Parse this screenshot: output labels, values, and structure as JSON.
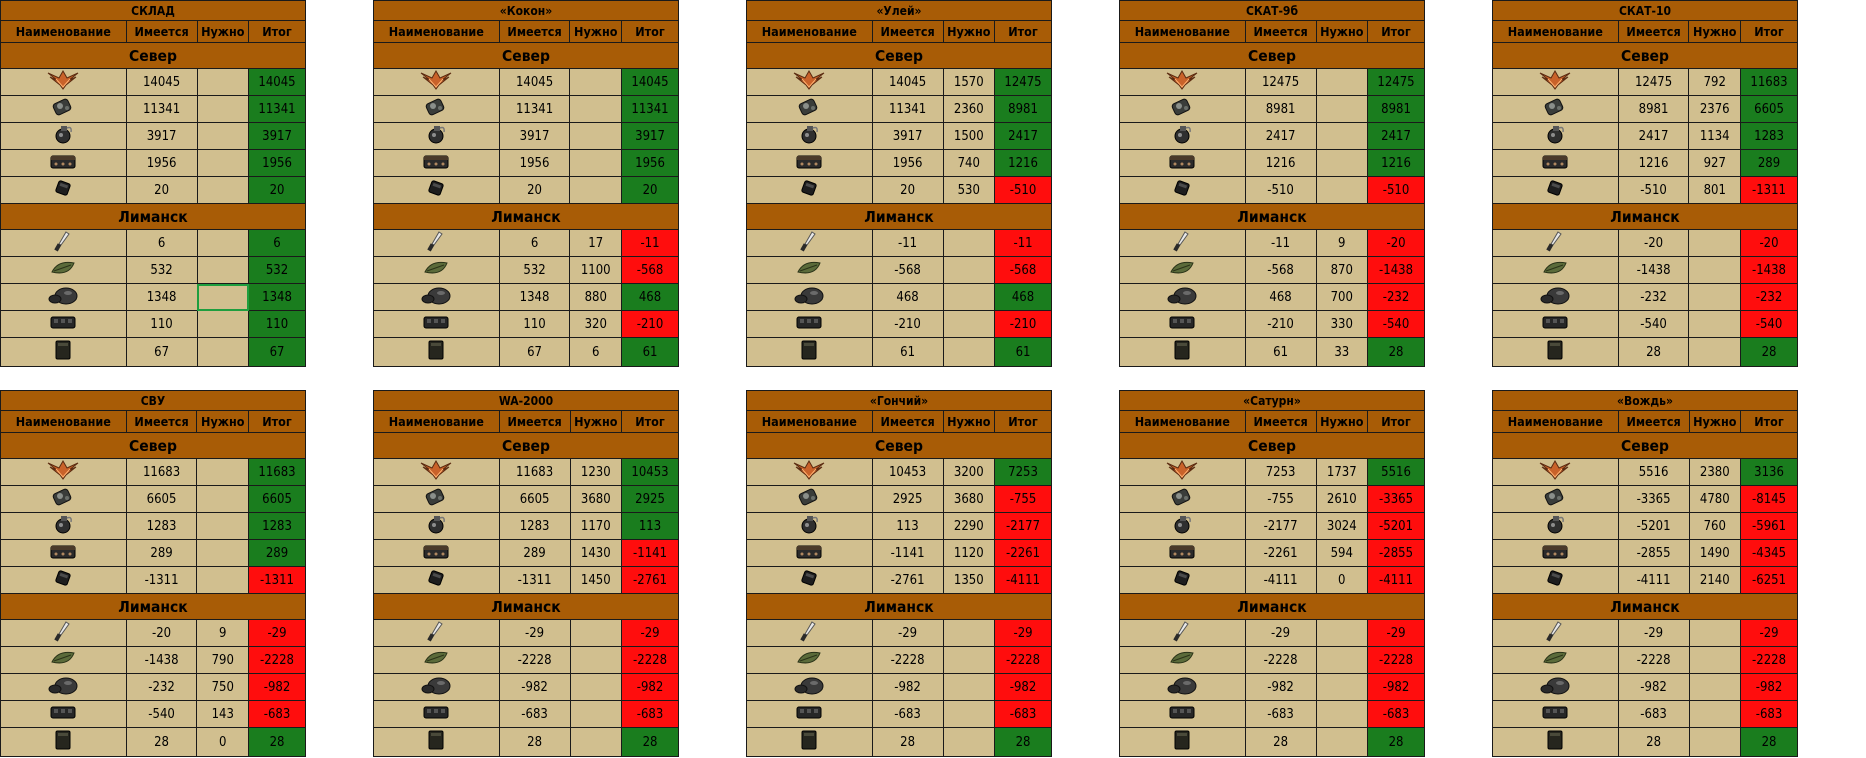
{
  "headers": {
    "name": "Наименование",
    "have": "Имеется",
    "need": "Нужно",
    "total": "Итог"
  },
  "sections": {
    "north": "Север",
    "limansk": "Лиманск"
  },
  "icons": {
    "north": [
      "claw-artifact-icon",
      "battery-pack-icon",
      "grenade-icon",
      "ammo-box-icon",
      "small-pouch-icon"
    ],
    "limansk": [
      "knife-icon",
      "leaf-icon",
      "rock-artifact-icon",
      "crate-icon",
      "canister-icon"
    ]
  },
  "colors": {
    "header": "#a85c06",
    "cell": "#d1bf8f",
    "positive": "#1a7d1e",
    "negative": "#ff0d0d"
  },
  "blocks": [
    {
      "title": "СКЛАД",
      "north": [
        [
          "14045",
          "",
          "14045"
        ],
        [
          "11341",
          "",
          "11341"
        ],
        [
          "3917",
          "",
          "3917"
        ],
        [
          "1956",
          "",
          "1956"
        ],
        [
          "20",
          "",
          "20"
        ]
      ],
      "limansk": [
        [
          "6",
          "",
          "6"
        ],
        [
          "532",
          "",
          "532"
        ],
        [
          "1348",
          "",
          "1348"
        ],
        [
          "110",
          "",
          "110"
        ],
        [
          "67",
          "",
          "67"
        ]
      ]
    },
    {
      "title": "«Кокон»",
      "north": [
        [
          "14045",
          "",
          "14045"
        ],
        [
          "11341",
          "",
          "11341"
        ],
        [
          "3917",
          "",
          "3917"
        ],
        [
          "1956",
          "",
          "1956"
        ],
        [
          "20",
          "",
          "20"
        ]
      ],
      "limansk": [
        [
          "6",
          "17",
          "-11"
        ],
        [
          "532",
          "1100",
          "-568"
        ],
        [
          "1348",
          "880",
          "468"
        ],
        [
          "110",
          "320",
          "-210"
        ],
        [
          "67",
          "6",
          "61"
        ]
      ]
    },
    {
      "title": "«Улей»",
      "north": [
        [
          "14045",
          "1570",
          "12475"
        ],
        [
          "11341",
          "2360",
          "8981"
        ],
        [
          "3917",
          "1500",
          "2417"
        ],
        [
          "1956",
          "740",
          "1216"
        ],
        [
          "20",
          "530",
          "-510"
        ]
      ],
      "limansk": [
        [
          "-11",
          "",
          "-11"
        ],
        [
          "-568",
          "",
          "-568"
        ],
        [
          "468",
          "",
          "468"
        ],
        [
          "-210",
          "",
          "-210"
        ],
        [
          "61",
          "",
          "61"
        ]
      ]
    },
    {
      "title": "СКАТ-9б",
      "north": [
        [
          "12475",
          "",
          "12475"
        ],
        [
          "8981",
          "",
          "8981"
        ],
        [
          "2417",
          "",
          "2417"
        ],
        [
          "1216",
          "",
          "1216"
        ],
        [
          "-510",
          "",
          "-510"
        ]
      ],
      "limansk": [
        [
          "-11",
          "9",
          "-20"
        ],
        [
          "-568",
          "870",
          "-1438"
        ],
        [
          "468",
          "700",
          "-232"
        ],
        [
          "-210",
          "330",
          "-540"
        ],
        [
          "61",
          "33",
          "28"
        ]
      ]
    },
    {
      "title": "СКАТ-10",
      "north": [
        [
          "12475",
          "792",
          "11683"
        ],
        [
          "8981",
          "2376",
          "6605"
        ],
        [
          "2417",
          "1134",
          "1283"
        ],
        [
          "1216",
          "927",
          "289"
        ],
        [
          "-510",
          "801",
          "-1311"
        ]
      ],
      "limansk": [
        [
          "-20",
          "",
          "-20"
        ],
        [
          "-1438",
          "",
          "-1438"
        ],
        [
          "-232",
          "",
          "-232"
        ],
        [
          "-540",
          "",
          "-540"
        ],
        [
          "28",
          "",
          "28"
        ]
      ]
    },
    {
      "title": "СВУ",
      "north": [
        [
          "11683",
          "",
          "11683"
        ],
        [
          "6605",
          "",
          "6605"
        ],
        [
          "1283",
          "",
          "1283"
        ],
        [
          "289",
          "",
          "289"
        ],
        [
          "-1311",
          "",
          "-1311"
        ]
      ],
      "limansk": [
        [
          "-20",
          "9",
          "-29"
        ],
        [
          "-1438",
          "790",
          "-2228"
        ],
        [
          "-232",
          "750",
          "-982"
        ],
        [
          "-540",
          "143",
          "-683"
        ],
        [
          "28",
          "0",
          "28"
        ]
      ]
    },
    {
      "title": "WA-2000",
      "north": [
        [
          "11683",
          "1230",
          "10453"
        ],
        [
          "6605",
          "3680",
          "2925"
        ],
        [
          "1283",
          "1170",
          "113"
        ],
        [
          "289",
          "1430",
          "-1141"
        ],
        [
          "-1311",
          "1450",
          "-2761"
        ]
      ],
      "limansk": [
        [
          "-29",
          "",
          "-29"
        ],
        [
          "-2228",
          "",
          "-2228"
        ],
        [
          "-982",
          "",
          "-982"
        ],
        [
          "-683",
          "",
          "-683"
        ],
        [
          "28",
          "",
          "28"
        ]
      ]
    },
    {
      "title": "«Гончий»",
      "north": [
        [
          "10453",
          "3200",
          "7253"
        ],
        [
          "2925",
          "3680",
          "-755"
        ],
        [
          "113",
          "2290",
          "-2177"
        ],
        [
          "-1141",
          "1120",
          "-2261"
        ],
        [
          "-2761",
          "1350",
          "-4111"
        ]
      ],
      "limansk": [
        [
          "-29",
          "",
          "-29"
        ],
        [
          "-2228",
          "",
          "-2228"
        ],
        [
          "-982",
          "",
          "-982"
        ],
        [
          "-683",
          "",
          "-683"
        ],
        [
          "28",
          "",
          "28"
        ]
      ]
    },
    {
      "title": "«Сатурн»",
      "north": [
        [
          "7253",
          "1737",
          "5516"
        ],
        [
          "-755",
          "2610",
          "-3365"
        ],
        [
          "-2177",
          "3024",
          "-5201"
        ],
        [
          "-2261",
          "594",
          "-2855"
        ],
        [
          "-4111",
          "0",
          "-4111"
        ]
      ],
      "limansk": [
        [
          "-29",
          "",
          "-29"
        ],
        [
          "-2228",
          "",
          "-2228"
        ],
        [
          "-982",
          "",
          "-982"
        ],
        [
          "-683",
          "",
          "-683"
        ],
        [
          "28",
          "",
          "28"
        ]
      ]
    },
    {
      "title": "«Вождь»",
      "north": [
        [
          "5516",
          "2380",
          "3136"
        ],
        [
          "-3365",
          "4780",
          "-8145"
        ],
        [
          "-5201",
          "760",
          "-5961"
        ],
        [
          "-2855",
          "1490",
          "-4345"
        ],
        [
          "-4111",
          "2140",
          "-6251"
        ]
      ],
      "limansk": [
        [
          "-29",
          "",
          "-29"
        ],
        [
          "-2228",
          "",
          "-2228"
        ],
        [
          "-982",
          "",
          "-982"
        ],
        [
          "-683",
          "",
          "-683"
        ],
        [
          "28",
          "",
          "28"
        ]
      ]
    }
  ]
}
